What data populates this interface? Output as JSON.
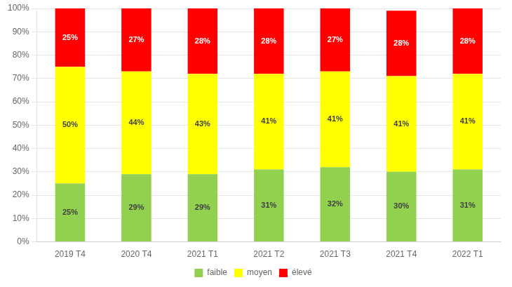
{
  "chart_data": {
    "type": "bar",
    "stacked": true,
    "categories": [
      "2019 T4",
      "2020 T4",
      "2021 T1",
      "2021 T2",
      "2021 T3",
      "2021 T4",
      "2022 T1"
    ],
    "series": [
      {
        "name": "faible",
        "color": "#92d050",
        "values": [
          25,
          29,
          29,
          31,
          32,
          30,
          31
        ],
        "value_labels": [
          "25%",
          "29%",
          "29%",
          "31%",
          "32%",
          "30%",
          "31%"
        ]
      },
      {
        "name": "moyen",
        "color": "#ffff00",
        "values": [
          50,
          44,
          43,
          41,
          41,
          41,
          41
        ],
        "value_labels": [
          "50%",
          "44%",
          "43%",
          "41%",
          "41%",
          "41%",
          "41%"
        ]
      },
      {
        "name": "élevé",
        "color": "#ff0000",
        "values": [
          25,
          27,
          28,
          28,
          27,
          28,
          28
        ],
        "value_labels": [
          "25%",
          "27%",
          "28%",
          "28%",
          "27%",
          "28%",
          "28%"
        ]
      }
    ],
    "ylim": [
      0,
      100
    ],
    "yticks": [
      {
        "value": 0,
        "label": "0%"
      },
      {
        "value": 10,
        "label": "10%"
      },
      {
        "value": 20,
        "label": "20%"
      },
      {
        "value": 30,
        "label": "30%"
      },
      {
        "value": 40,
        "label": "40%"
      },
      {
        "value": 50,
        "label": "50%"
      },
      {
        "value": 60,
        "label": "60%"
      },
      {
        "value": 70,
        "label": "70%"
      },
      {
        "value": 80,
        "label": "80%"
      },
      {
        "value": 90,
        "label": "90%"
      },
      {
        "value": 100,
        "label": "100%"
      }
    ],
    "grid": true,
    "legend": "bottom",
    "data_labels": true
  }
}
